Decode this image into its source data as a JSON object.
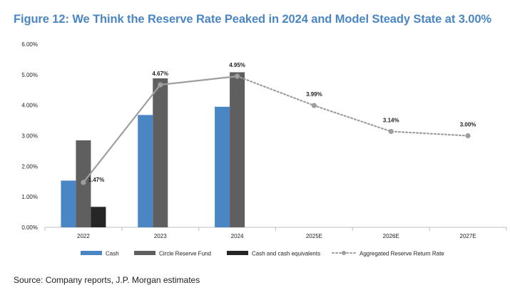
{
  "title": "Figure 12: We Think the Reserve Rate Peaked in 2024 and Model Steady State at 3.00%",
  "source": "Source: Company reports, J.P. Morgan estimates",
  "colors": {
    "title": "#4a86c4",
    "cash": "#4a86c4",
    "circle_reserve_fund": "#5f5f5f",
    "cash_equivalents": "#262626",
    "aggregated_line": "#9e9e9e"
  },
  "chart_data": {
    "type": "bar",
    "categories": [
      "2022",
      "2023",
      "2024",
      "2025E",
      "2026E",
      "2027E"
    ],
    "ylim": [
      0,
      6
    ],
    "yticks": [
      0,
      1,
      2,
      3,
      4,
      5,
      6
    ],
    "ytick_labels": [
      "0.00%",
      "1.00%",
      "2.00%",
      "3.00%",
      "4.00%",
      "5.00%",
      "6.00%"
    ],
    "xlabel": "",
    "ylabel": "",
    "series": [
      {
        "name": "Cash",
        "type": "bar",
        "values": [
          1.53,
          3.68,
          3.95,
          null,
          null,
          null
        ]
      },
      {
        "name": "Circle Reserve Fund",
        "type": "bar",
        "values": [
          2.85,
          4.88,
          5.08,
          null,
          null,
          null
        ]
      },
      {
        "name": "Cash and cash equivalents",
        "type": "bar",
        "values": [
          0.67,
          null,
          null,
          null,
          null,
          null
        ]
      },
      {
        "name": "Aggregated Reserve Return Rate",
        "type": "line",
        "values": [
          1.47,
          4.67,
          4.95,
          3.99,
          3.14,
          3.0
        ],
        "labels": [
          "1.47%",
          "4.67%",
          "4.95%",
          "3.99%",
          "3.14%",
          "3.00%"
        ],
        "dotted_from_index": 2
      }
    ],
    "legend": [
      "Cash",
      "Circle Reserve Fund",
      "Cash and cash equivalents",
      "Aggregated Reserve Return Rate"
    ],
    "legend_position": "bottom"
  }
}
